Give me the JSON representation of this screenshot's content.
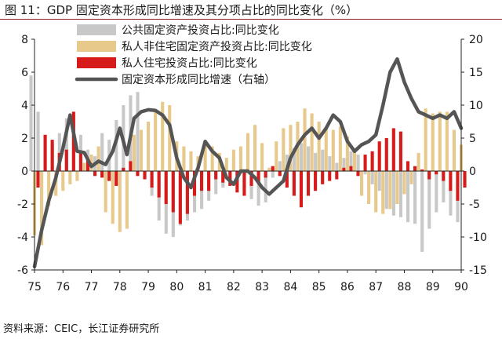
{
  "title": {
    "figure_no": "图 11：",
    "text": "GDP 固定资本形成同比增速及其分项占比的同比变化（%）"
  },
  "source": "资料来源：CEIC，长江证券研究所",
  "chart_data": {
    "type": "bar+line",
    "x_tick_labels": [
      "75",
      "76",
      "77",
      "78",
      "79",
      "80",
      "81",
      "82",
      "83",
      "84",
      "85",
      "86",
      "87",
      "88",
      "89",
      "90"
    ],
    "y_left_ticks": [
      8,
      6,
      4,
      2,
      0,
      -2,
      -4,
      -6
    ],
    "y_right_ticks": [
      20,
      15,
      10,
      5,
      0,
      -5,
      -10,
      -15
    ],
    "ylim_left": [
      -6,
      8
    ],
    "ylim_right": [
      -15,
      20
    ],
    "stacked": false,
    "legend_position": "top-center",
    "quarters": 61,
    "series": [
      {
        "name": "公共固定资产投资占比:同比变化",
        "type": "bar",
        "axis": "left",
        "color": "#c8c8c8",
        "values": [
          5.8,
          3.6,
          2.2,
          1.7,
          2.3,
          3.2,
          3.0,
          2.2,
          1.3,
          0.9,
          2.3,
          1.9,
          3.1,
          4.0,
          4.6,
          4.8,
          -0.5,
          -1.5,
          -3.0,
          -3.8,
          -4.0,
          -3.3,
          -3.0,
          -2.5,
          -2.3,
          -1.8,
          -1.4,
          -1.0,
          -0.8,
          -0.7,
          -1.1,
          -1.7,
          -2.1,
          -1.9,
          -0.4,
          0.6,
          1.0,
          1.4,
          1.7,
          1.5,
          1.1,
          1.3,
          0.9,
          0.5,
          0.8,
          1.2,
          1.0,
          -0.2,
          -0.8,
          -1.2,
          -2.3,
          -2.7,
          -2.8,
          -3.1,
          -3.2,
          -4.9,
          -3.5,
          -2.5,
          -1.9,
          -2.7,
          -3.1
        ]
      },
      {
        "name": "私人非住宅固定资产投资占比:同比变化",
        "type": "bar",
        "axis": "left",
        "color": "#e8c98c",
        "values": [
          -3.9,
          -4.5,
          -2.1,
          -1.5,
          -1.2,
          -0.8,
          -0.6,
          0.5,
          1.0,
          1.5,
          -2.5,
          -3.2,
          -3.7,
          -3.5,
          2.2,
          2.5,
          3.0,
          3.6,
          4.2,
          4.0,
          1.8,
          1.5,
          1.2,
          0.9,
          1.8,
          1.5,
          1.1,
          0.8,
          1.3,
          1.5,
          2.3,
          2.8,
          1.7,
          0.2,
          1.8,
          2.6,
          2.8,
          3.0,
          3.8,
          3.5,
          3.0,
          2.7,
          2.5,
          2.7,
          2.1,
          1.4,
          -1.5,
          -2.0,
          -2.5,
          -2.6,
          -2.3,
          -2.0,
          -1.4,
          -0.8,
          1.1,
          3.8,
          3.5,
          3.6,
          3.6,
          2.5,
          1.6
        ]
      },
      {
        "name": "私人住宅投资占比:同比变化",
        "type": "bar",
        "axis": "left",
        "color": "#d71a1a",
        "values": [
          -1.0,
          2.2,
          1.9,
          1.1,
          1.3,
          3.6,
          1.2,
          0.7,
          -0.3,
          -0.4,
          -0.6,
          -0.9,
          0.2,
          0.6,
          -0.3,
          -0.5,
          -1.0,
          -1.6,
          -2.0,
          -2.5,
          -3.2,
          -2.6,
          -1.5,
          -1.2,
          -1.2,
          -0.5,
          -0.7,
          -0.9,
          -1.3,
          -1.5,
          -0.9,
          -0.7,
          -0.4,
          0.3,
          -0.3,
          -1.0,
          -1.5,
          -2.2,
          -1.5,
          -1.2,
          -0.8,
          -0.6,
          -0.5,
          0.2,
          0.3,
          -0.3,
          1.0,
          1.2,
          1.8,
          2.0,
          2.6,
          2.4,
          0.6,
          0.3,
          0.1,
          -0.5,
          -0.2,
          -0.6,
          -1.2,
          -1.8,
          -1.0
        ]
      },
      {
        "name": "固定资本形成同比增速（右轴）",
        "type": "line",
        "axis": "right",
        "color": "#555555",
        "values": [
          -14.5,
          -9.0,
          -4.5,
          -1.0,
          3.5,
          8.5,
          3.0,
          2.8,
          0.7,
          1.5,
          1.0,
          3.0,
          6.5,
          2.5,
          8.0,
          9.0,
          9.3,
          9.2,
          8.5,
          7.0,
          2.0,
          -1.0,
          -2.5,
          0.5,
          4.5,
          3.0,
          2.0,
          -1.0,
          -2.0,
          0.0,
          0.0,
          -1.0,
          -2.5,
          -3.5,
          -2.5,
          -1.5,
          2.0,
          4.0,
          5.5,
          6.5,
          5.0,
          6.5,
          8.5,
          7.5,
          4.5,
          3.0,
          4.0,
          4.5,
          5.5,
          10.0,
          15.0,
          17.0,
          13.5,
          11.0,
          9.0,
          8.5,
          8.0,
          8.5,
          8.0,
          9.0,
          6.5
        ]
      }
    ]
  }
}
